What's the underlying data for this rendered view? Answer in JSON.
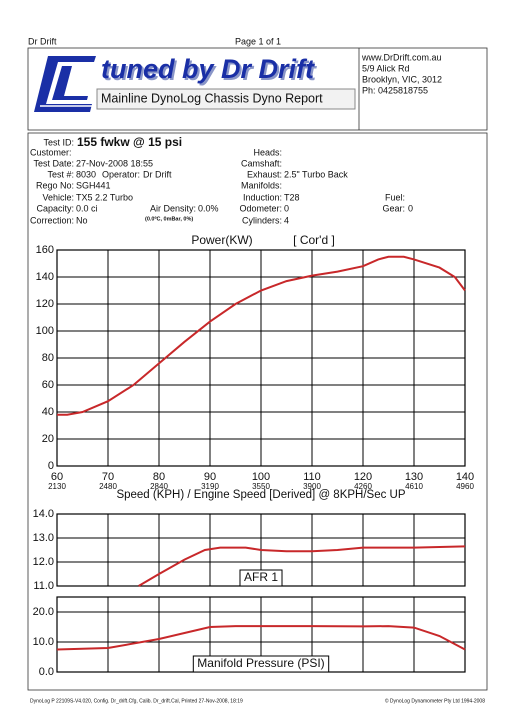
{
  "header": {
    "left": "Dr Drift",
    "center": "Page 1 of 1"
  },
  "logo": {
    "title": "tuned by Dr Drift",
    "subtitle": "Mainline DynoLog Chassis Dyno Report"
  },
  "address": [
    "www.DrDrift.com.au",
    "5/9 Alick Rd",
    "Brooklyn, VIC, 3012",
    "Ph: 0425818755"
  ],
  "info": {
    "test_id": {
      "label": "Test ID:",
      "value": "155 fwkw @ 15 psi"
    },
    "customer": {
      "label": "Customer:"
    },
    "test_date": {
      "label": "Test Date:",
      "value": "27-Nov-2008 18:55"
    },
    "test_no": {
      "label": "Test #:",
      "value": "8030"
    },
    "operator": {
      "label": "Operator:",
      "value": "Dr Drift"
    },
    "rego": {
      "label": "Rego No:",
      "value": "SGH441"
    },
    "vehicle": {
      "label": "Vehicle:",
      "value": "TX5 2.2 Turbo"
    },
    "capacity": {
      "label": "Capacity:",
      "value": "0.0 ci"
    },
    "air_density": {
      "label": "Air Density:",
      "value": "0.0%",
      "note": "(0.0ºC, 0mBar, 0%)"
    },
    "correction": {
      "label": "Correction:",
      "value": "No"
    },
    "heads": {
      "label": "Heads:"
    },
    "camshaft": {
      "label": "Camshaft:"
    },
    "exhaust": {
      "label": "Exhaust:",
      "value": "2.5\" Turbo Back"
    },
    "manifolds": {
      "label": "Manifolds:"
    },
    "induction": {
      "label": "Induction:",
      "value": "T28"
    },
    "odometer": {
      "label": "Odometer:",
      "value": "0"
    },
    "cylinders": {
      "label": "Cylinders:",
      "value": "4"
    },
    "fuel": {
      "label": "Fuel:"
    },
    "gear": {
      "label": "Gear:",
      "value": "0"
    }
  },
  "chart_data": [
    {
      "type": "line",
      "title": "Power(KW)",
      "subtitle": "[ Cor'd ]",
      "x_label": "Speed (KPH) / Engine Speed [Derived] @ 8KPH/Sec UP",
      "x": [
        60,
        62,
        65,
        70,
        75,
        80,
        85,
        90,
        95,
        100,
        105,
        110,
        115,
        120,
        123,
        125,
        128,
        130,
        135,
        138,
        140
      ],
      "values": [
        38,
        38,
        40,
        48,
        60,
        76,
        92,
        107,
        120,
        130,
        137,
        141,
        144,
        148,
        153,
        155,
        155,
        153,
        147,
        140,
        130
      ],
      "color": "#c8282a",
      "xlim": [
        60,
        140
      ],
      "xticks": [
        60,
        70,
        80,
        90,
        100,
        110,
        120,
        130,
        140
      ],
      "rpm_ticks": [
        2130,
        2480,
        2840,
        3190,
        3550,
        3900,
        4260,
        4610,
        4960
      ],
      "ylim": [
        0,
        160
      ],
      "yticks": [
        0,
        20,
        40,
        60,
        80,
        100,
        120,
        140,
        160
      ],
      "grid": true
    },
    {
      "type": "line",
      "label": "AFR 1",
      "x": [
        76,
        80,
        85,
        89,
        92,
        97,
        100,
        105,
        110,
        115,
        120,
        130,
        140
      ],
      "values": [
        11.0,
        11.5,
        12.1,
        12.5,
        12.6,
        12.6,
        12.5,
        12.45,
        12.45,
        12.5,
        12.6,
        12.6,
        12.65
      ],
      "color": "#c8282a",
      "xlim": [
        60,
        140
      ],
      "ylim": [
        11,
        14
      ],
      "yticks": [
        {
          "value": 11,
          "label": "11.0"
        },
        {
          "value": 12,
          "label": "12.0"
        },
        {
          "value": 13,
          "label": "13.0"
        },
        {
          "value": 14,
          "label": "14.0"
        }
      ],
      "grid": true
    },
    {
      "type": "line",
      "label": "Manifold Pressure (PSI)",
      "x": [
        60,
        70,
        80,
        85,
        90,
        95,
        100,
        110,
        120,
        125,
        130,
        135,
        140
      ],
      "values": [
        7.5,
        8,
        11,
        13,
        15,
        15.3,
        15.3,
        15.3,
        15.2,
        15.3,
        14.8,
        12,
        7.5
      ],
      "color": "#c8282a",
      "xlim": [
        60,
        140
      ],
      "ylim": [
        0,
        25
      ],
      "yticks": [
        {
          "value": 0,
          "label": "0.0"
        },
        {
          "value": 10,
          "label": "10.0"
        },
        {
          "value": 20,
          "label": "20.0"
        }
      ],
      "grid": true
    }
  ],
  "footer": {
    "left": "DynoLog P 22109S-V4.020, Config. Dr_drift.Cfg, Calib. Dr_drift.Cal, Printed 27-Nov-2008, 18:19",
    "right": "© DynoLog Dynamometer Pty Ltd 1994-2008"
  }
}
